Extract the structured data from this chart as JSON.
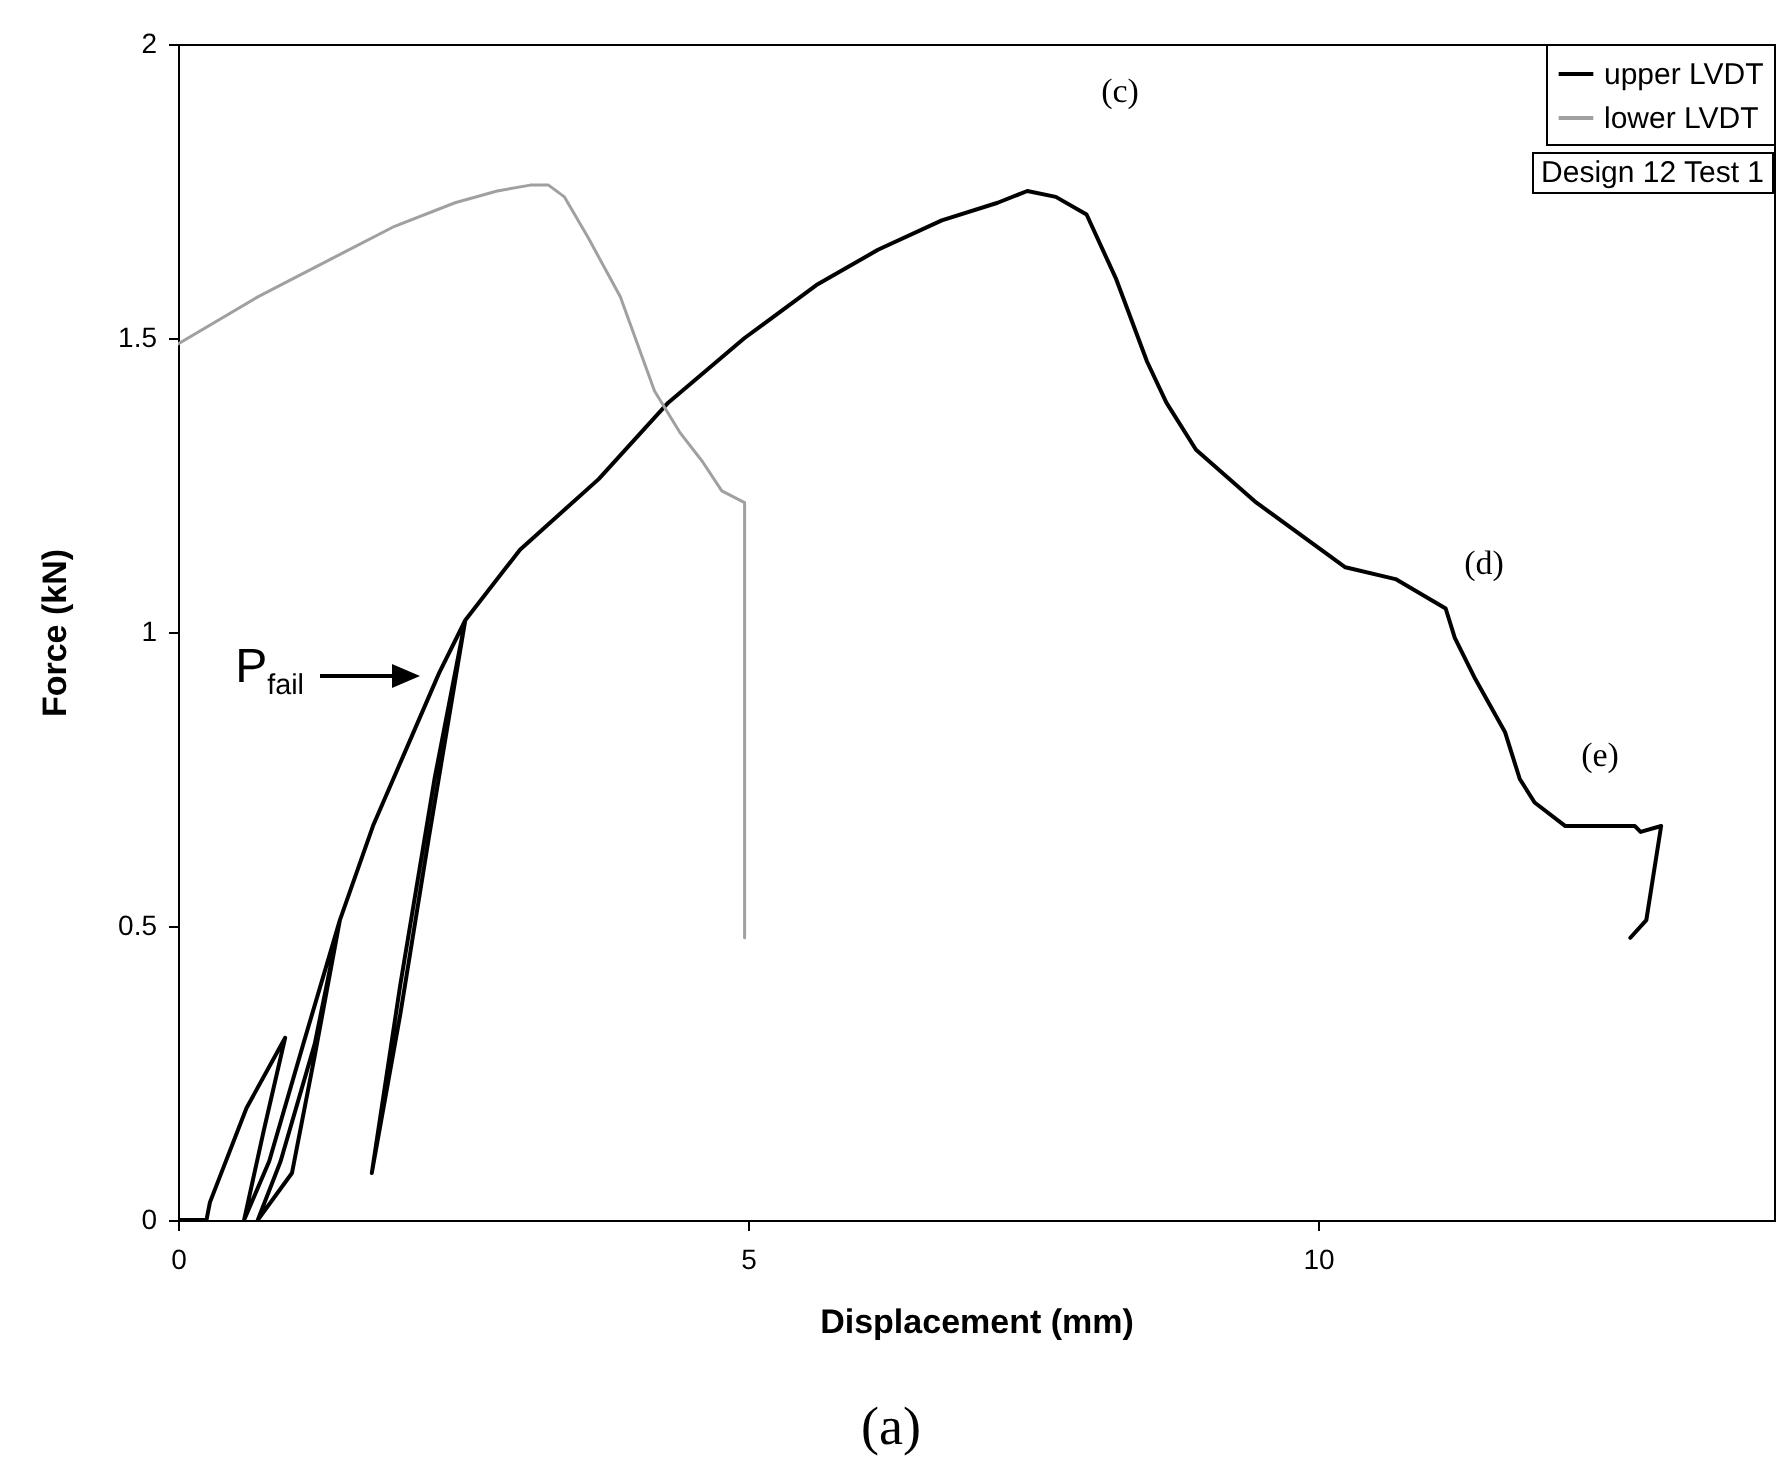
{
  "chart_data": {
    "type": "line",
    "xlabel": "Displacement (mm)",
    "ylabel": "Force (kN)",
    "xlim": [
      0,
      14
    ],
    "xticks": [
      0,
      5,
      10
    ],
    "ylim": [
      0,
      2
    ],
    "yticks": [
      0,
      0.5,
      1,
      1.5,
      2
    ],
    "legend": "top right",
    "grid": false,
    "marker": "none",
    "line_style": "solid",
    "series": [
      {
        "name": "upper LVDT",
        "color": "#000000",
        "x": [
          0,
          0.25,
          0.28,
          0.6,
          0.94,
          0.75,
          0.58,
          0.8,
          1.1,
          1.42,
          1.2,
          1.0,
          0.7,
          0.9,
          1.2,
          1.42,
          1.71,
          2.0,
          2.29,
          2.52,
          2.2,
          1.95,
          1.7,
          1.95,
          2.25,
          2.52,
          3.0,
          3.69,
          4.3,
          4.97,
          5.6,
          6.14,
          6.7,
          7.19,
          7.45,
          7.7,
          7.97,
          8.23,
          8.5,
          8.67,
          8.93,
          9.46,
          10.24,
          10.68,
          11.12,
          11.2,
          11.38,
          11.64,
          11.77,
          11.9,
          12.17,
          12.43,
          12.78,
          12.83,
          13.01,
          12.88,
          12.74
        ],
        "values": [
          0,
          0,
          0.03,
          0.19,
          0.31,
          0.15,
          0,
          0.1,
          0.3,
          0.51,
          0.28,
          0.08,
          0,
          0.1,
          0.3,
          0.51,
          0.67,
          0.8,
          0.93,
          1.02,
          0.65,
          0.35,
          0.08,
          0.4,
          0.75,
          1.02,
          1.14,
          1.26,
          1.39,
          1.5,
          1.59,
          1.65,
          1.7,
          1.73,
          1.75,
          1.74,
          1.71,
          1.6,
          1.46,
          1.39,
          1.31,
          1.22,
          1.11,
          1.09,
          1.04,
          0.99,
          0.92,
          0.83,
          0.75,
          0.71,
          0.67,
          0.67,
          0.67,
          0.66,
          0.67,
          0.51,
          0.48
        ]
      },
      {
        "name": "lower LVDT",
        "color": "#a0a0a0",
        "x": [
          0,
          0.7,
          1.4,
          1.9,
          2.43,
          2.8,
          3.09,
          3.25,
          3.39,
          3.6,
          3.88,
          4.18,
          4.4,
          4.6,
          4.77,
          4.97,
          4.97,
          4.97
        ],
        "values": [
          1.49,
          1.57,
          1.64,
          1.69,
          1.73,
          1.75,
          1.76,
          1.76,
          1.74,
          1.67,
          1.57,
          1.41,
          1.34,
          1.29,
          1.24,
          1.22,
          0.9,
          0.48
        ]
      }
    ],
    "annotations": [
      "P$_{fail}$",
      "(c)",
      "(d)",
      "(e)",
      "Design 12  Test 1",
      "(a)"
    ]
  }
}
